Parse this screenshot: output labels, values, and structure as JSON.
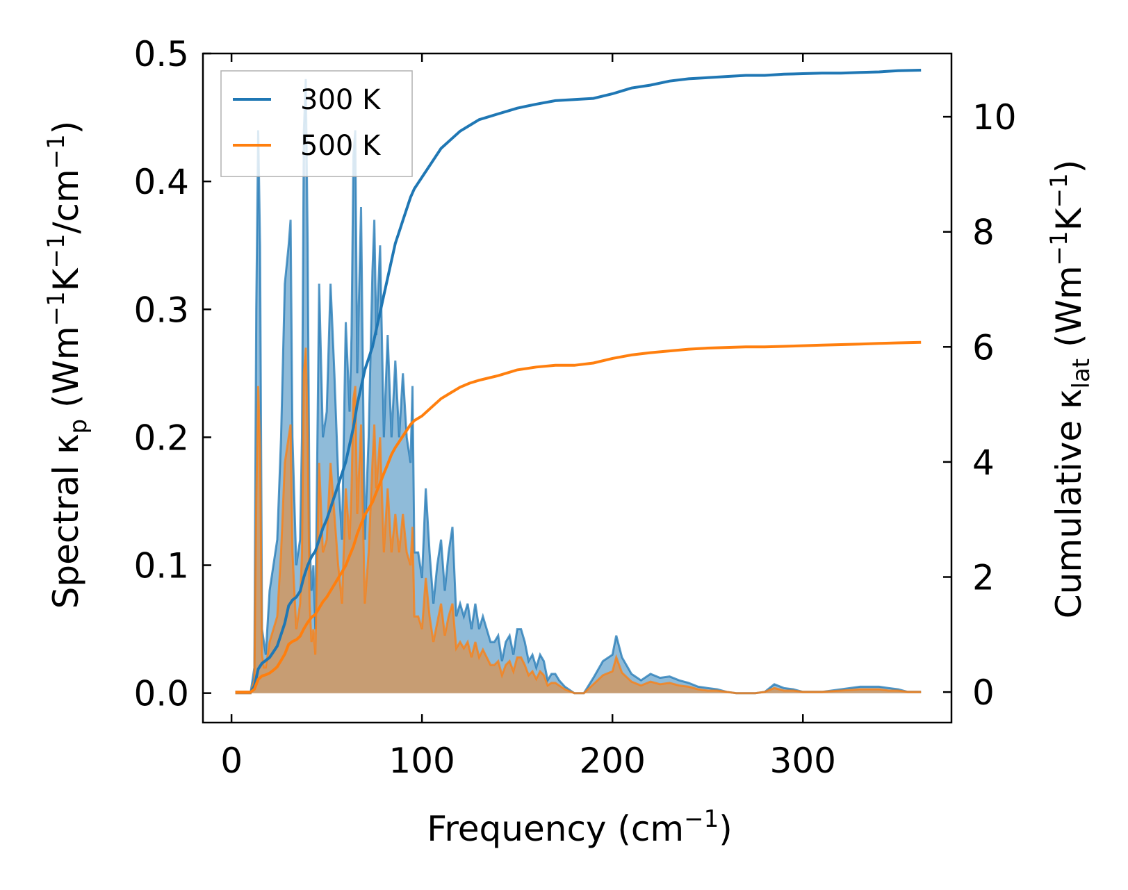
{
  "chart_data": {
    "type": "line",
    "x_axis": {
      "label": "Frequency (cm",
      "label_exp": "−1",
      "label_close": ")",
      "lim": [
        -15,
        378
      ],
      "ticks": [
        0,
        100,
        200,
        300
      ],
      "tick_labels": [
        "0",
        "100",
        "200",
        "300"
      ]
    },
    "y_left": {
      "label_main": "Spectral κ",
      "label_sub": "p",
      "label_units": " (Wm",
      "label_e1": "−1",
      "label_k": "K",
      "label_e2": "−1",
      "label_cm": "/cm",
      "label_e3": "−1",
      "label_close": ")",
      "lim": [
        -0.023,
        0.5
      ],
      "ticks": [
        0.0,
        0.1,
        0.2,
        0.3,
        0.4,
        0.5
      ],
      "tick_labels": [
        "0.0",
        "0.1",
        "0.2",
        "0.3",
        "0.4",
        "0.5"
      ]
    },
    "y_right": {
      "label_main": "Cumulative κ",
      "label_sub": "lat",
      "label_units": " (Wm",
      "label_e1": "−1",
      "label_k": "K",
      "label_e2": "−1",
      "label_close": ")",
      "lim": [
        -0.53,
        11.1
      ],
      "ticks": [
        0,
        2,
        4,
        6,
        8,
        10
      ],
      "tick_labels": [
        "0",
        "2",
        "4",
        "6",
        "8",
        "10"
      ]
    },
    "legend": {
      "placement": "upper-left",
      "entries": [
        {
          "label": "300 K",
          "color": "#1f77b4"
        },
        {
          "label": "500 K",
          "color": "#ff7f0e"
        }
      ]
    },
    "series": [
      {
        "name": "300 K",
        "color": "#1f77b4",
        "fill_color": "#1f77b4",
        "spectral": {
          "x": [
            2,
            10,
            12,
            13,
            14,
            15,
            16,
            17,
            18,
            20,
            22,
            24,
            26,
            28,
            30,
            31,
            32,
            34,
            36,
            37,
            38,
            39,
            40,
            41,
            42,
            43,
            44,
            46,
            48,
            50,
            52,
            54,
            56,
            58,
            60,
            62,
            63,
            64,
            65,
            66,
            68,
            70,
            72,
            74,
            75,
            76,
            78,
            80,
            82,
            84,
            86,
            88,
            90,
            92,
            94,
            95,
            96,
            98,
            100,
            102,
            104,
            106,
            108,
            110,
            112,
            114,
            116,
            118,
            120,
            122,
            124,
            126,
            128,
            130,
            132,
            134,
            136,
            138,
            140,
            142,
            144,
            146,
            148,
            150,
            152,
            154,
            156,
            158,
            160,
            162,
            164,
            166,
            168,
            170,
            172,
            175,
            180,
            185,
            190,
            195,
            200,
            202,
            205,
            210,
            215,
            220,
            225,
            230,
            235,
            240,
            245,
            250,
            255,
            260,
            265,
            270,
            275,
            280,
            285,
            290,
            295,
            300,
            310,
            320,
            330,
            340,
            345,
            350,
            355,
            362
          ],
          "y": [
            0,
            0,
            0.02,
            0.3,
            0.44,
            0.35,
            0.05,
            0.04,
            0.03,
            0.08,
            0.1,
            0.12,
            0.2,
            0.32,
            0.35,
            0.37,
            0.2,
            0.1,
            0.12,
            0.2,
            0.44,
            0.48,
            0.35,
            0.12,
            0.08,
            0.1,
            0.05,
            0.32,
            0.2,
            0.22,
            0.32,
            0.25,
            0.17,
            0.12,
            0.29,
            0.22,
            0.28,
            0.42,
            0.44,
            0.25,
            0.38,
            0.12,
            0.2,
            0.33,
            0.37,
            0.28,
            0.35,
            0.2,
            0.28,
            0.2,
            0.26,
            0.2,
            0.25,
            0.2,
            0.18,
            0.24,
            0.11,
            0.11,
            0.09,
            0.16,
            0.11,
            0.07,
            0.1,
            0.12,
            0.08,
            0.11,
            0.13,
            0.06,
            0.07,
            0.06,
            0.07,
            0.05,
            0.07,
            0.05,
            0.06,
            0.05,
            0.04,
            0.04,
            0.045,
            0.025,
            0.04,
            0.045,
            0.03,
            0.05,
            0.05,
            0.04,
            0.025,
            0.03,
            0.02,
            0.03,
            0.025,
            0.01,
            0.015,
            0.015,
            0.01,
            0.005,
            0,
            0,
            0.012,
            0.025,
            0.03,
            0.045,
            0.028,
            0.015,
            0.01,
            0.015,
            0.012,
            0.013,
            0.01,
            0.008,
            0.005,
            0.004,
            0.003,
            0.001,
            0,
            0,
            0,
            0.001,
            0.007,
            0.004,
            0.003,
            0.001,
            0.001,
            0.003,
            0.005,
            0.005,
            0.004,
            0.003,
            0.001,
            0.001
          ]
        },
        "cumulative": {
          "x": [
            2,
            10,
            12,
            14,
            16,
            18,
            20,
            22,
            24,
            26,
            28,
            30,
            32,
            34,
            36,
            38,
            40,
            42,
            44,
            46,
            48,
            50,
            52,
            54,
            56,
            58,
            60,
            62,
            64,
            66,
            68,
            70,
            72,
            74,
            76,
            78,
            80,
            82,
            84,
            86,
            88,
            90,
            92,
            94,
            96,
            98,
            100,
            105,
            110,
            115,
            120,
            125,
            130,
            135,
            140,
            145,
            150,
            160,
            170,
            180,
            190,
            200,
            210,
            220,
            230,
            240,
            250,
            260,
            270,
            280,
            290,
            300,
            310,
            320,
            330,
            340,
            350,
            362
          ],
          "y": [
            0,
            0,
            0.1,
            0.4,
            0.5,
            0.55,
            0.6,
            0.7,
            0.8,
            1.0,
            1.2,
            1.5,
            1.6,
            1.65,
            1.75,
            2.0,
            2.2,
            2.35,
            2.45,
            2.65,
            2.85,
            3.0,
            3.2,
            3.4,
            3.6,
            3.8,
            4.0,
            4.3,
            4.6,
            5.0,
            5.3,
            5.6,
            5.8,
            6.0,
            6.3,
            6.6,
            6.9,
            7.2,
            7.5,
            7.8,
            8.0,
            8.2,
            8.4,
            8.6,
            8.75,
            8.85,
            8.95,
            9.2,
            9.45,
            9.6,
            9.75,
            9.85,
            9.95,
            10.0,
            10.05,
            10.1,
            10.15,
            10.22,
            10.28,
            10.3,
            10.32,
            10.4,
            10.5,
            10.55,
            10.62,
            10.66,
            10.68,
            10.7,
            10.72,
            10.72,
            10.74,
            10.75,
            10.76,
            10.76,
            10.77,
            10.78,
            10.8,
            10.81
          ]
        }
      },
      {
        "name": "500 K",
        "color": "#ff7f0e",
        "fill_color": "#ff7f0e",
        "spectral": {
          "x": [
            2,
            10,
            12,
            13,
            14,
            15,
            16,
            17,
            18,
            20,
            22,
            24,
            26,
            28,
            30,
            31,
            32,
            34,
            36,
            37,
            38,
            39,
            40,
            41,
            42,
            43,
            44,
            46,
            48,
            50,
            52,
            54,
            56,
            58,
            60,
            62,
            63,
            64,
            65,
            66,
            68,
            70,
            72,
            74,
            75,
            76,
            78,
            80,
            82,
            84,
            86,
            88,
            90,
            92,
            94,
            95,
            96,
            98,
            100,
            102,
            104,
            106,
            108,
            110,
            112,
            114,
            116,
            118,
            120,
            122,
            124,
            126,
            128,
            130,
            132,
            134,
            136,
            138,
            140,
            142,
            144,
            146,
            148,
            150,
            152,
            154,
            156,
            158,
            160,
            162,
            164,
            166,
            168,
            170,
            172,
            175,
            180,
            185,
            190,
            195,
            200,
            202,
            205,
            210,
            215,
            220,
            225,
            230,
            235,
            240,
            245,
            250,
            255,
            260,
            265,
            270,
            275,
            280,
            285,
            290,
            295,
            300,
            310,
            320,
            330,
            340,
            345,
            350,
            355,
            362
          ],
          "y": [
            0,
            0,
            0.01,
            0.15,
            0.24,
            0.19,
            0.03,
            0.02,
            0.02,
            0.04,
            0.05,
            0.06,
            0.11,
            0.18,
            0.2,
            0.21,
            0.11,
            0.05,
            0.07,
            0.11,
            0.25,
            0.27,
            0.2,
            0.07,
            0.04,
            0.05,
            0.03,
            0.18,
            0.11,
            0.12,
            0.18,
            0.14,
            0.1,
            0.07,
            0.16,
            0.12,
            0.16,
            0.23,
            0.24,
            0.14,
            0.21,
            0.07,
            0.11,
            0.18,
            0.21,
            0.16,
            0.2,
            0.11,
            0.16,
            0.11,
            0.14,
            0.11,
            0.14,
            0.11,
            0.1,
            0.13,
            0.06,
            0.06,
            0.05,
            0.09,
            0.06,
            0.04,
            0.055,
            0.07,
            0.045,
            0.06,
            0.07,
            0.035,
            0.04,
            0.035,
            0.04,
            0.028,
            0.04,
            0.028,
            0.034,
            0.028,
            0.022,
            0.022,
            0.025,
            0.014,
            0.022,
            0.025,
            0.017,
            0.028,
            0.028,
            0.022,
            0.014,
            0.017,
            0.011,
            0.017,
            0.014,
            0.006,
            0.008,
            0.008,
            0.006,
            0.003,
            0,
            0,
            0.007,
            0.014,
            0.017,
            0.028,
            0.016,
            0.009,
            0.006,
            0.009,
            0.007,
            0.008,
            0.006,
            0.005,
            0.003,
            0.002,
            0.002,
            0.001,
            0,
            0,
            0,
            0.001,
            0.004,
            0.002,
            0.002,
            0.001,
            0.001,
            0.002,
            0.003,
            0.003,
            0.002,
            0.002,
            0.001,
            0.001
          ]
        },
        "cumulative": {
          "x": [
            2,
            10,
            12,
            14,
            16,
            18,
            20,
            22,
            24,
            26,
            28,
            30,
            32,
            34,
            36,
            38,
            40,
            42,
            44,
            46,
            48,
            50,
            52,
            54,
            56,
            58,
            60,
            62,
            64,
            66,
            68,
            70,
            72,
            74,
            76,
            78,
            80,
            82,
            84,
            86,
            88,
            90,
            92,
            94,
            96,
            98,
            100,
            105,
            110,
            115,
            120,
            125,
            130,
            135,
            140,
            145,
            150,
            160,
            170,
            180,
            190,
            200,
            210,
            220,
            230,
            240,
            250,
            260,
            270,
            280,
            290,
            300,
            310,
            320,
            330,
            340,
            350,
            362
          ],
          "y": [
            0,
            0,
            0.05,
            0.22,
            0.28,
            0.3,
            0.33,
            0.38,
            0.44,
            0.55,
            0.66,
            0.83,
            0.88,
            0.91,
            0.97,
            1.1,
            1.21,
            1.3,
            1.35,
            1.46,
            1.57,
            1.65,
            1.76,
            1.87,
            1.98,
            2.09,
            2.2,
            2.37,
            2.53,
            2.75,
            2.92,
            3.08,
            3.19,
            3.3,
            3.47,
            3.63,
            3.8,
            3.96,
            4.13,
            4.25,
            4.35,
            4.45,
            4.55,
            4.65,
            4.72,
            4.76,
            4.8,
            4.95,
            5.1,
            5.2,
            5.3,
            5.37,
            5.42,
            5.46,
            5.5,
            5.55,
            5.6,
            5.65,
            5.68,
            5.68,
            5.72,
            5.8,
            5.86,
            5.9,
            5.93,
            5.96,
            5.98,
            5.99,
            6.0,
            6.0,
            6.01,
            6.02,
            6.03,
            6.04,
            6.05,
            6.06,
            6.07,
            6.08
          ]
        }
      }
    ]
  }
}
